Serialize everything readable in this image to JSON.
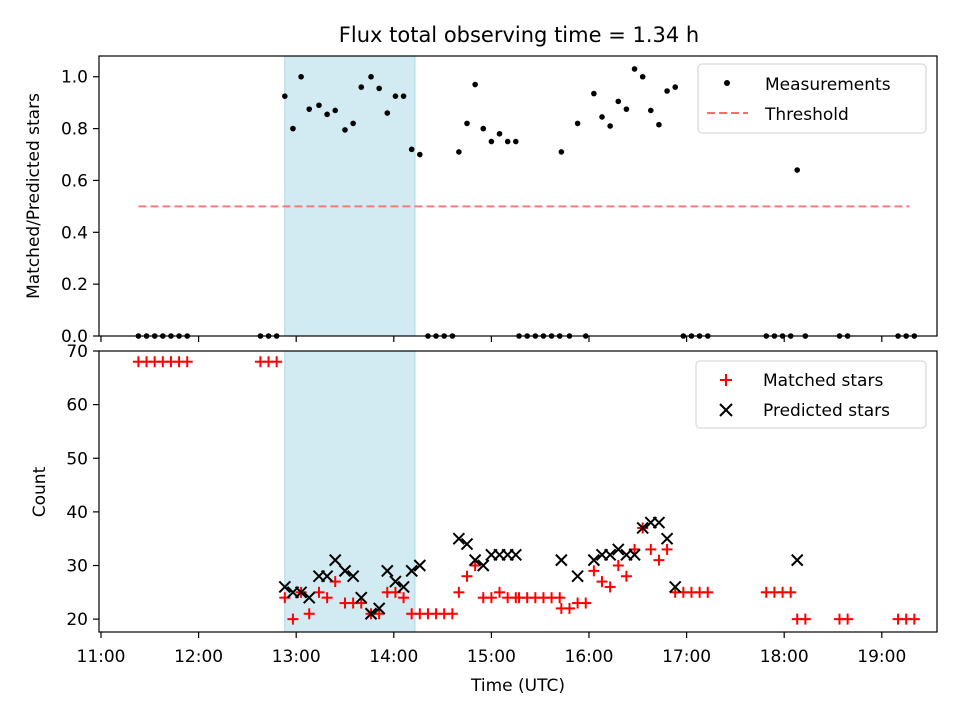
{
  "title": "Flux total observing time = 1.34 h",
  "chart_data": [
    {
      "type": "scatter",
      "panel": "top",
      "ylabel": "Matched/Predicted stars",
      "ylim": [
        0,
        1.08
      ],
      "yticks": [
        0.0,
        0.2,
        0.4,
        0.6,
        0.8,
        1.0
      ],
      "ytick_labels": [
        "0.0",
        "0.2",
        "0.4",
        "0.6",
        "0.8",
        "1.0"
      ],
      "legend_position": "upper right",
      "highlight_span": {
        "start": "12:53",
        "end": "14:13",
        "color": "#add8e6"
      },
      "threshold": {
        "name": "Threshold",
        "value": 0.5,
        "start": "11:23",
        "end": "19:17",
        "color": "#ff6b6b",
        "style": "dashed"
      },
      "series": [
        {
          "name": "Measurements",
          "color": "#000000",
          "marker": "dot",
          "points": [
            [
              "11:23",
              0
            ],
            [
              "11:28",
              0
            ],
            [
              "11:33",
              0
            ],
            [
              "11:38",
              0
            ],
            [
              "11:43",
              0
            ],
            [
              "11:48",
              0
            ],
            [
              "11:53",
              0
            ],
            [
              "12:38",
              0
            ],
            [
              "12:43",
              0
            ],
            [
              "12:48",
              0
            ],
            [
              "12:53",
              0.925
            ],
            [
              "12:58",
              0.8
            ],
            [
              "13:03",
              1.0
            ],
            [
              "13:08",
              0.875
            ],
            [
              "13:14",
              0.89
            ],
            [
              "13:19",
              0.855
            ],
            [
              "13:24",
              0.87
            ],
            [
              "13:30",
              0.795
            ],
            [
              "13:35",
              0.82
            ],
            [
              "13:40",
              0.96
            ],
            [
              "13:46",
              1.0
            ],
            [
              "13:51",
              0.955
            ],
            [
              "13:56",
              0.86
            ],
            [
              "14:01",
              0.925
            ],
            [
              "14:06",
              0.925
            ],
            [
              "14:11",
              0.72
            ],
            [
              "14:16",
              0.7
            ],
            [
              "14:21",
              0
            ],
            [
              "14:26",
              0
            ],
            [
              "14:31",
              0
            ],
            [
              "14:36",
              0
            ],
            [
              "14:40",
              0.71
            ],
            [
              "14:45",
              0.82
            ],
            [
              "14:50",
              0.97
            ],
            [
              "14:55",
              0.8
            ],
            [
              "15:00",
              0.75
            ],
            [
              "15:05",
              0.78
            ],
            [
              "15:10",
              0.75
            ],
            [
              "15:15",
              0.75
            ],
            [
              "15:17",
              0
            ],
            [
              "15:22",
              0
            ],
            [
              "15:27",
              0
            ],
            [
              "15:32",
              0
            ],
            [
              "15:37",
              0
            ],
            [
              "15:42",
              0
            ],
            [
              "15:43",
              0.71
            ],
            [
              "15:48",
              0
            ],
            [
              "15:53",
              0.82
            ],
            [
              "15:58",
              0
            ],
            [
              "16:03",
              0.935
            ],
            [
              "16:08",
              0.845
            ],
            [
              "16:13",
              0.81
            ],
            [
              "16:18",
              0.905
            ],
            [
              "16:23",
              0.875
            ],
            [
              "16:28",
              1.03
            ],
            [
              "16:33",
              1.0
            ],
            [
              "16:38",
              0.87
            ],
            [
              "16:43",
              0.815
            ],
            [
              "16:48",
              0.945
            ],
            [
              "16:53",
              0.96
            ],
            [
              "16:58",
              0
            ],
            [
              "17:03",
              0
            ],
            [
              "17:08",
              0
            ],
            [
              "17:13",
              0
            ],
            [
              "17:49",
              0
            ],
            [
              "17:54",
              0
            ],
            [
              "17:59",
              0
            ],
            [
              "18:04",
              0
            ],
            [
              "18:08",
              0.64
            ],
            [
              "18:13",
              0
            ],
            [
              "18:34",
              0
            ],
            [
              "18:39",
              0
            ],
            [
              "19:10",
              0
            ],
            [
              "19:15",
              0
            ],
            [
              "19:20",
              0
            ]
          ]
        }
      ]
    },
    {
      "type": "scatter",
      "panel": "bottom",
      "xlabel": "Time (UTC)",
      "ylabel": "Count",
      "ylim": [
        17.6,
        70
      ],
      "yticks": [
        20,
        30,
        40,
        50,
        60,
        70
      ],
      "ytick_labels": [
        "20",
        "30",
        "40",
        "50",
        "60",
        "70"
      ],
      "xlim": [
        "10:57",
        "19:42"
      ],
      "xticks": [
        "11:00",
        "12:00",
        "13:00",
        "14:00",
        "15:00",
        "16:00",
        "17:00",
        "18:00",
        "19:00"
      ],
      "legend_position": "upper right",
      "highlight_span": {
        "start": "12:53",
        "end": "14:13",
        "color": "#add8e6"
      },
      "series": [
        {
          "name": "Matched stars",
          "color": "#ff0000",
          "marker": "plus",
          "points": [
            [
              "11:23",
              68
            ],
            [
              "11:28",
              68
            ],
            [
              "11:33",
              68
            ],
            [
              "11:38",
              68
            ],
            [
              "11:43",
              68
            ],
            [
              "11:48",
              68
            ],
            [
              "11:53",
              68
            ],
            [
              "12:38",
              68
            ],
            [
              "12:43",
              68
            ],
            [
              "12:48",
              68
            ],
            [
              "12:53",
              24
            ],
            [
              "12:58",
              20
            ],
            [
              "13:03",
              25
            ],
            [
              "13:08",
              21
            ],
            [
              "13:14",
              25
            ],
            [
              "13:19",
              24
            ],
            [
              "13:24",
              27
            ],
            [
              "13:30",
              23
            ],
            [
              "13:35",
              23
            ],
            [
              "13:40",
              23
            ],
            [
              "13:46",
              21
            ],
            [
              "13:51",
              21
            ],
            [
              "13:56",
              25
            ],
            [
              "14:01",
              25
            ],
            [
              "14:06",
              24
            ],
            [
              "14:11",
              21
            ],
            [
              "14:16",
              21
            ],
            [
              "14:21",
              21
            ],
            [
              "14:26",
              21
            ],
            [
              "14:31",
              21
            ],
            [
              "14:36",
              21
            ],
            [
              "14:40",
              25
            ],
            [
              "14:45",
              28
            ],
            [
              "14:50",
              30
            ],
            [
              "14:55",
              24
            ],
            [
              "15:00",
              24
            ],
            [
              "15:05",
              25
            ],
            [
              "15:10",
              24
            ],
            [
              "15:15",
              24
            ],
            [
              "15:17",
              24
            ],
            [
              "15:22",
              24
            ],
            [
              "15:27",
              24
            ],
            [
              "15:32",
              24
            ],
            [
              "15:37",
              24
            ],
            [
              "15:42",
              24
            ],
            [
              "15:43",
              22
            ],
            [
              "15:48",
              22
            ],
            [
              "15:53",
              23
            ],
            [
              "15:58",
              23
            ],
            [
              "16:03",
              29
            ],
            [
              "16:08",
              27
            ],
            [
              "16:13",
              26
            ],
            [
              "16:18",
              30
            ],
            [
              "16:23",
              28
            ],
            [
              "16:28",
              33
            ],
            [
              "16:33",
              37
            ],
            [
              "16:38",
              33
            ],
            [
              "16:43",
              31
            ],
            [
              "16:48",
              33
            ],
            [
              "16:53",
              25
            ],
            [
              "16:58",
              25
            ],
            [
              "17:03",
              25
            ],
            [
              "17:08",
              25
            ],
            [
              "17:13",
              25
            ],
            [
              "17:49",
              25
            ],
            [
              "17:54",
              25
            ],
            [
              "17:59",
              25
            ],
            [
              "18:04",
              25
            ],
            [
              "18:08",
              20
            ],
            [
              "18:13",
              20
            ],
            [
              "18:34",
              20
            ],
            [
              "18:39",
              20
            ],
            [
              "19:10",
              20
            ],
            [
              "19:15",
              20
            ],
            [
              "19:20",
              20
            ]
          ]
        },
        {
          "name": "Predicted stars",
          "color": "#000000",
          "marker": "cross",
          "points": [
            [
              "12:53",
              26
            ],
            [
              "12:58",
              25
            ],
            [
              "13:03",
              25
            ],
            [
              "13:08",
              24
            ],
            [
              "13:14",
              28
            ],
            [
              "13:19",
              28
            ],
            [
              "13:24",
              31
            ],
            [
              "13:30",
              29
            ],
            [
              "13:35",
              28
            ],
            [
              "13:40",
              24
            ],
            [
              "13:46",
              21
            ],
            [
              "13:51",
              22
            ],
            [
              "13:56",
              29
            ],
            [
              "14:01",
              27
            ],
            [
              "14:06",
              26
            ],
            [
              "14:11",
              29
            ],
            [
              "14:16",
              30
            ],
            [
              "14:40",
              35
            ],
            [
              "14:45",
              34
            ],
            [
              "14:50",
              31
            ],
            [
              "14:55",
              30
            ],
            [
              "15:00",
              32
            ],
            [
              "15:05",
              32
            ],
            [
              "15:10",
              32
            ],
            [
              "15:15",
              32
            ],
            [
              "15:43",
              31
            ],
            [
              "15:53",
              28
            ],
            [
              "16:03",
              31
            ],
            [
              "16:08",
              32
            ],
            [
              "16:13",
              32
            ],
            [
              "16:18",
              33
            ],
            [
              "16:23",
              32
            ],
            [
              "16:28",
              32
            ],
            [
              "16:33",
              37
            ],
            [
              "16:38",
              38
            ],
            [
              "16:43",
              38
            ],
            [
              "16:48",
              35
            ],
            [
              "16:53",
              26
            ],
            [
              "18:08",
              31
            ]
          ]
        }
      ]
    }
  ]
}
